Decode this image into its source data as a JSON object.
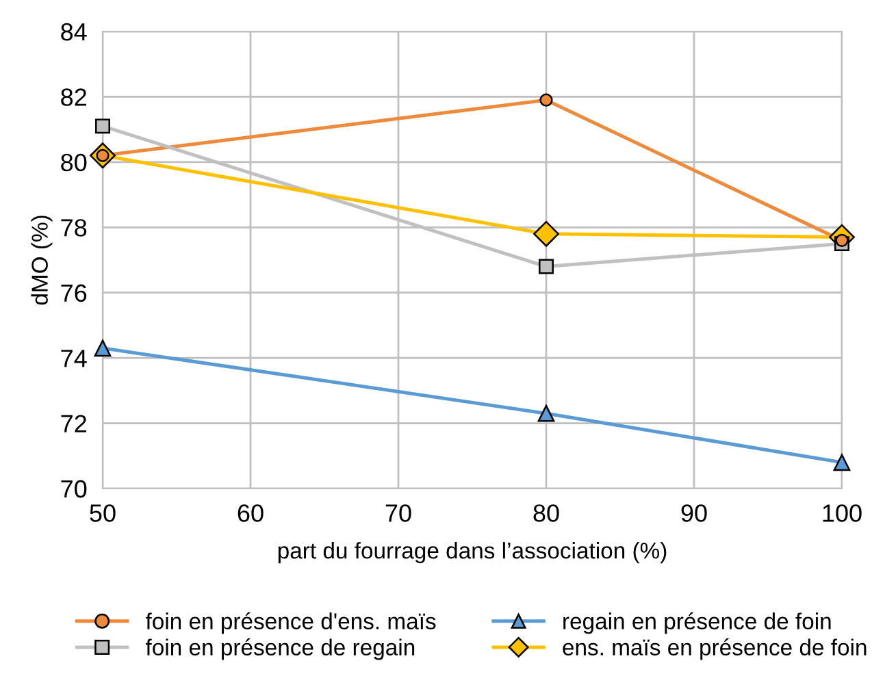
{
  "chart_data": {
    "type": "line",
    "xlabel": "part du fourrage dans l’association (%)",
    "ylabel": "dMO (%)",
    "x": [
      50,
      80,
      100
    ],
    "xlim": [
      50,
      100
    ],
    "xticks": [
      50,
      60,
      70,
      80,
      90,
      100
    ],
    "ylim": [
      70,
      84
    ],
    "yticks": [
      70,
      72,
      74,
      76,
      78,
      80,
      82,
      84
    ],
    "grid": true,
    "legend": "bottom",
    "line_style": "solid",
    "series": [
      {
        "name": "foin en présence d'ens. maïs",
        "color": "#ed8a3c",
        "marker": "circle",
        "values": [
          80.2,
          81.9,
          77.6
        ]
      },
      {
        "name": "foin en présence de regain",
        "color": "#c0c0c0",
        "marker": "square",
        "values": [
          81.1,
          76.8,
          77.5
        ]
      },
      {
        "name": "regain en présence de foin",
        "color": "#5b9bd5",
        "marker": "triangle",
        "values": [
          74.3,
          72.3,
          70.8
        ]
      },
      {
        "name": "ens. maïs en présence de foin",
        "color": "#ffc000",
        "marker": "diamond",
        "values": [
          80.2,
          77.8,
          77.7
        ]
      }
    ]
  }
}
